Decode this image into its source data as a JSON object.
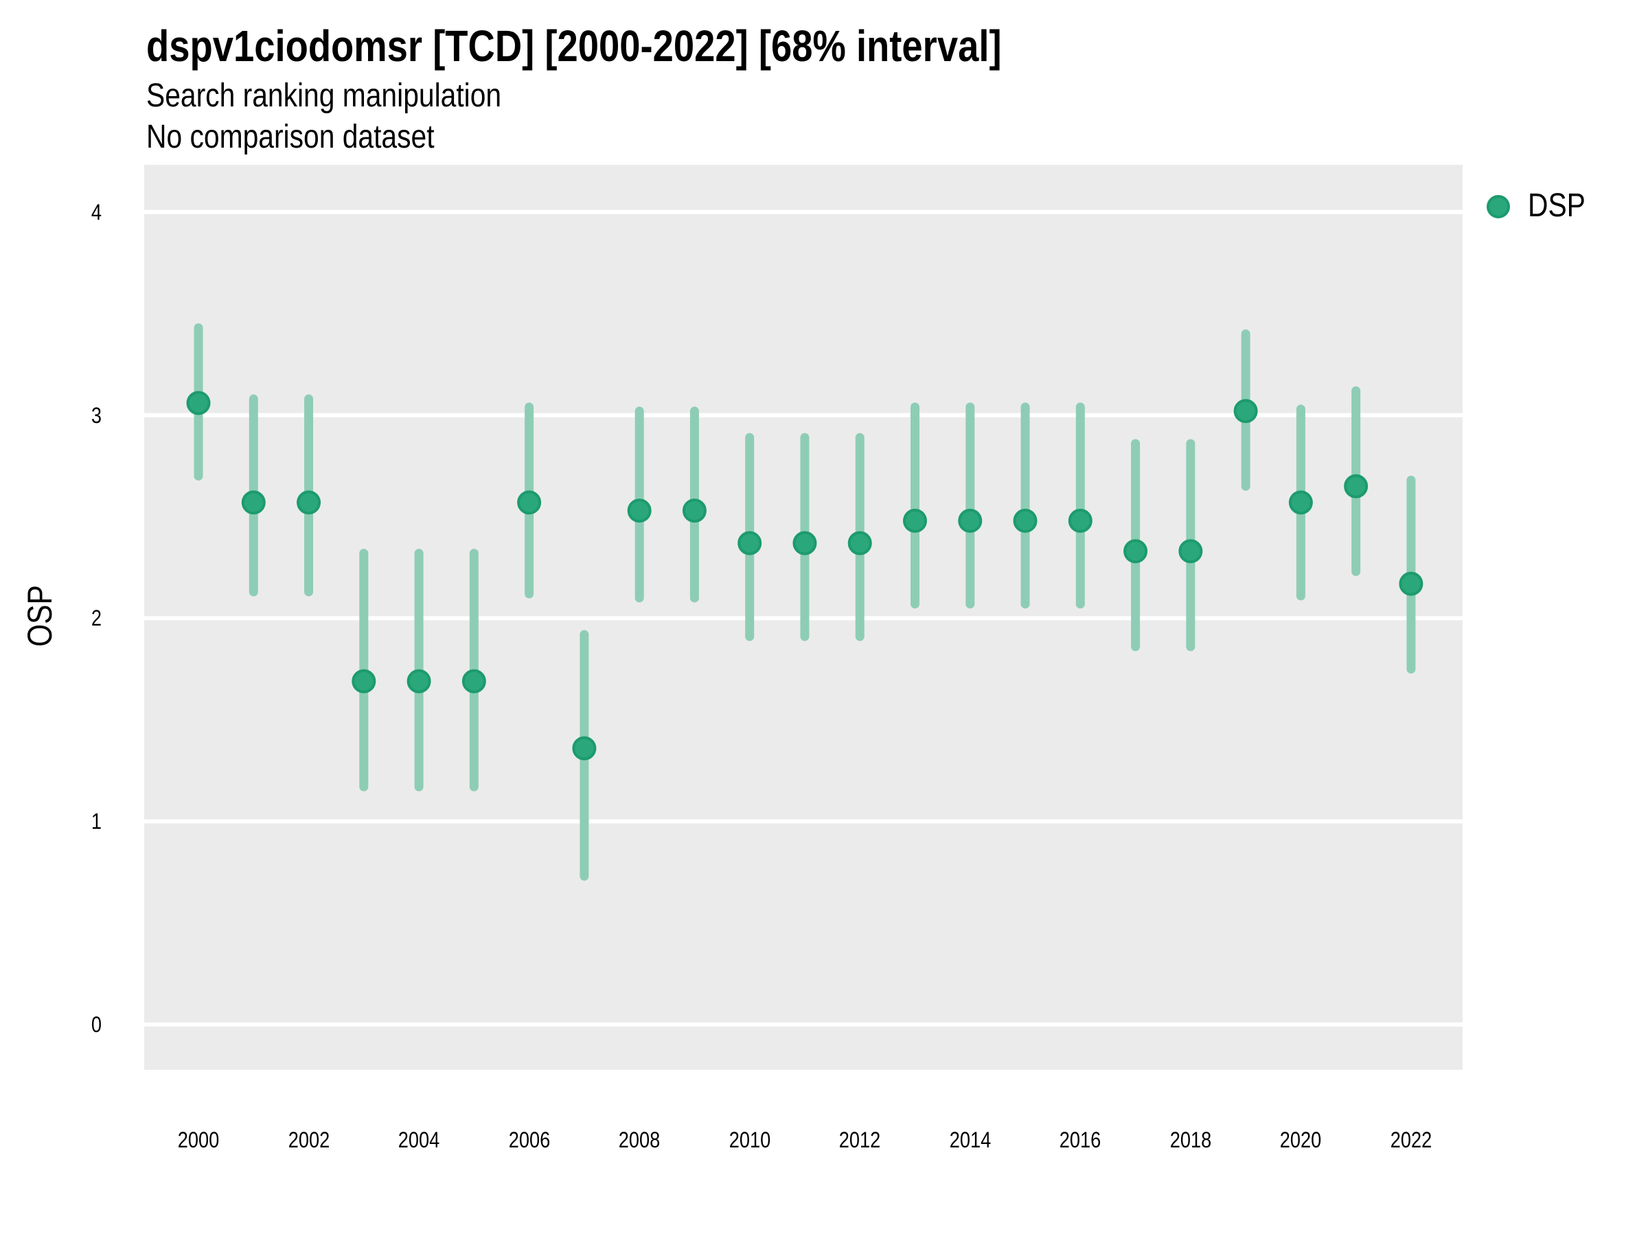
{
  "header": {
    "title": "dspv1ciodomsr [TCD] [2000-2022] [68% interval]",
    "subtitle_line1": "Search ranking manipulation",
    "subtitle_line2": "No comparison dataset"
  },
  "axes": {
    "y_label": "OSP",
    "y_ticks": [
      "4",
      "3",
      "2",
      "1",
      "0"
    ],
    "x_ticks": [
      "2000",
      "2002",
      "2004",
      "2006",
      "2008",
      "2010",
      "2012",
      "2014",
      "2016",
      "2018",
      "2020",
      "2022"
    ]
  },
  "legend": {
    "items": [
      {
        "label": "DSP",
        "swatch_shape": "circle",
        "color": "#2aa87c"
      }
    ]
  },
  "colors": {
    "panel_background": "#ebebeb",
    "gridline": "#ffffff",
    "marker_fill": "#2aa87c",
    "marker_edge": "#1d9b6e",
    "interval_line": "#8ecdb5",
    "text": "#000000",
    "page_background": "#ffffff"
  },
  "chart_data": {
    "type": "scatter",
    "title": "dspv1ciodomsr [TCD] [2000-2022] [68% interval]",
    "subtitle": [
      "Search ranking manipulation",
      "No comparison dataset"
    ],
    "xlabel": "",
    "ylabel": "OSP",
    "interval_level": "68%",
    "xlim": [
      1999,
      2023
    ],
    "ylim": [
      -0.22,
      4.25
    ],
    "x_tick_values": [
      2000,
      2002,
      2004,
      2006,
      2008,
      2010,
      2012,
      2014,
      2016,
      2018,
      2020,
      2022
    ],
    "y_tick_values": [
      0,
      1,
      2,
      3,
      4
    ],
    "grid": "major-horizontal-white-on-gray",
    "legend_position": "right-top",
    "series": [
      {
        "name": "DSP",
        "x": [
          2000,
          2001,
          2002,
          2003,
          2004,
          2005,
          2006,
          2007,
          2008,
          2009,
          2010,
          2011,
          2012,
          2013,
          2014,
          2015,
          2016,
          2017,
          2018,
          2019,
          2020,
          2021,
          2022
        ],
        "y": [
          3.06,
          2.57,
          2.57,
          1.69,
          1.69,
          1.69,
          2.57,
          1.36,
          2.53,
          2.53,
          2.37,
          2.37,
          2.37,
          2.48,
          2.48,
          2.48,
          2.48,
          2.33,
          2.33,
          3.02,
          2.57,
          2.65,
          2.17
        ],
        "y_lo": [
          2.7,
          2.13,
          2.13,
          1.17,
          1.17,
          1.17,
          2.12,
          0.73,
          2.1,
          2.1,
          1.91,
          1.91,
          1.91,
          2.07,
          2.07,
          2.07,
          2.07,
          1.86,
          1.86,
          2.65,
          2.11,
          2.23,
          1.75
        ],
        "y_hi": [
          3.43,
          3.08,
          3.08,
          2.32,
          2.32,
          2.32,
          3.04,
          1.92,
          3.02,
          3.02,
          2.89,
          2.89,
          2.89,
          3.04,
          3.04,
          3.04,
          3.04,
          2.86,
          2.86,
          3.4,
          3.03,
          3.12,
          2.68
        ]
      }
    ]
  }
}
